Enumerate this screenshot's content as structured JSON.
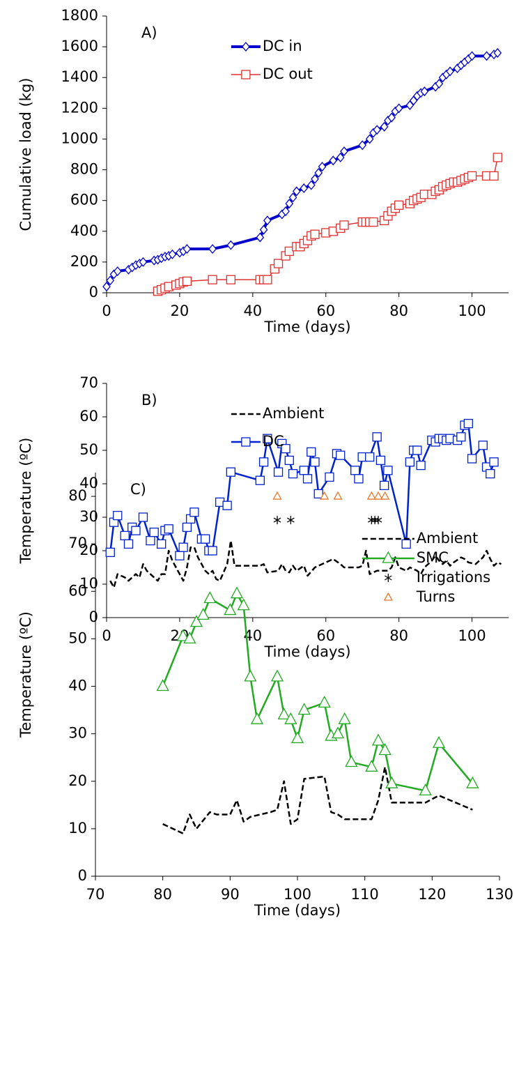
{
  "chart_data": [
    {
      "type": "line",
      "annotation": "A)",
      "x_label": "Time (days)",
      "y_label": "Cumulative load (kg)",
      "xlim": [
        0,
        110
      ],
      "xticks": [
        0,
        20,
        40,
        60,
        80,
        100
      ],
      "ylim": [
        0,
        1800
      ],
      "yticks": [
        0,
        200,
        400,
        600,
        800,
        1000,
        1200,
        1400,
        1600,
        1800
      ],
      "legend": "upper center",
      "series": [
        {
          "name": "DC in",
          "color": "#0000cc",
          "line": "thick",
          "marker": "diamond",
          "x": [
            0,
            1,
            2,
            3,
            6,
            7,
            8,
            9,
            10,
            13,
            14,
            15,
            16,
            17,
            18,
            20,
            21,
            22,
            29,
            34,
            42,
            43,
            44,
            48,
            49,
            50,
            51,
            52,
            54,
            56,
            57,
            58,
            59,
            62,
            64,
            65,
            70,
            72,
            73,
            74,
            76,
            77,
            78,
            79,
            80,
            83,
            84,
            85,
            86,
            87,
            90,
            91,
            92,
            93,
            94,
            96,
            97,
            98,
            99,
            100,
            104,
            106,
            107
          ],
          "values": [
            40,
            80,
            120,
            140,
            150,
            165,
            180,
            190,
            200,
            210,
            215,
            225,
            235,
            240,
            250,
            260,
            270,
            285,
            285,
            310,
            360,
            410,
            470,
            510,
            530,
            580,
            620,
            660,
            680,
            700,
            740,
            780,
            820,
            860,
            880,
            920,
            960,
            1000,
            1040,
            1060,
            1080,
            1120,
            1140,
            1180,
            1200,
            1220,
            1250,
            1280,
            1300,
            1310,
            1340,
            1360,
            1400,
            1420,
            1440,
            1460,
            1480,
            1500,
            1520,
            1540,
            1540,
            1550,
            1560
          ]
        },
        {
          "name": "DC out",
          "color": "#e03030",
          "line": "thin",
          "marker": "square",
          "x": [
            14,
            15,
            16,
            17,
            19,
            20,
            21,
            22,
            29,
            34,
            42,
            43,
            44,
            46,
            47,
            49,
            50,
            52,
            53,
            54,
            55,
            56,
            57,
            60,
            62,
            64,
            65,
            70,
            71,
            72,
            73,
            76,
            77,
            78,
            79,
            80,
            83,
            84,
            85,
            86,
            87,
            89,
            90,
            91,
            92,
            93,
            94,
            95,
            96,
            97,
            98,
            99,
            100,
            104,
            106,
            107
          ],
          "values": [
            10,
            20,
            30,
            40,
            50,
            60,
            70,
            75,
            85,
            85,
            85,
            85,
            85,
            155,
            190,
            240,
            270,
            300,
            300,
            320,
            340,
            370,
            380,
            390,
            400,
            420,
            440,
            460,
            460,
            460,
            460,
            470,
            500,
            530,
            550,
            570,
            580,
            600,
            610,
            620,
            640,
            640,
            660,
            670,
            690,
            700,
            710,
            720,
            720,
            730,
            740,
            750,
            760,
            760,
            760,
            880
          ]
        }
      ]
    },
    {
      "type": "line",
      "annotation": "B)",
      "x_label": "Time (days)",
      "y_label": "Temperature (ºC)",
      "xlim": [
        0,
        110
      ],
      "xticks": [
        0,
        20,
        40,
        60,
        80,
        100
      ],
      "ylim": [
        0,
        70
      ],
      "yticks": [
        0,
        10,
        20,
        30,
        40,
        50,
        60,
        70
      ],
      "legend": "upper center",
      "series": [
        {
          "name": "Ambient",
          "color": "#000000",
          "line": "dashed",
          "marker": "none",
          "x": [
            1,
            2,
            3,
            5,
            6,
            8,
            9,
            10,
            11,
            13,
            14,
            15,
            16,
            17,
            18,
            19,
            20,
            21,
            22,
            23,
            24,
            25,
            26,
            27,
            28,
            29,
            30,
            31,
            33,
            34,
            35,
            42,
            43,
            44,
            47,
            48,
            49,
            50,
            51,
            52,
            54,
            55,
            57,
            60,
            62,
            64,
            65,
            67,
            69,
            70,
            71,
            72,
            74,
            76,
            77,
            78,
            79,
            80,
            82,
            83,
            85,
            86,
            87,
            88,
            89,
            90,
            91,
            92,
            93,
            94,
            95,
            97,
            98,
            99,
            101,
            103,
            104,
            105,
            106,
            107,
            108
          ],
          "values": [
            11,
            9,
            13,
            12,
            11,
            13,
            12,
            16,
            14,
            12,
            11,
            13,
            13,
            20,
            17,
            15,
            13,
            11,
            15,
            21,
            21,
            18,
            16,
            14,
            13,
            14,
            11.5,
            11,
            16,
            23,
            15.5,
            15.5,
            16,
            13.5,
            14,
            16,
            14,
            13.5,
            15.5,
            14,
            15.5,
            12.5,
            15,
            16.5,
            17.5,
            16,
            15,
            15,
            15,
            15.5,
            20,
            13,
            14,
            14,
            14,
            15,
            18,
            15,
            14,
            15,
            14,
            13,
            15,
            16,
            17,
            18.5,
            17,
            16,
            17,
            15.5,
            16.5,
            18,
            17.5,
            16.5,
            16,
            18,
            20,
            17.5,
            15.5,
            16.5,
            16
          ]
        },
        {
          "name": "DC",
          "color": "#0022cc",
          "line": "normal",
          "marker": "square",
          "x": [
            1,
            2,
            3,
            5,
            6,
            7,
            8,
            10,
            12,
            13,
            15,
            16,
            17,
            20,
            21,
            22,
            23,
            24,
            26,
            27,
            28,
            29,
            31,
            33,
            34,
            42,
            43,
            44,
            47,
            48,
            49,
            50,
            51,
            54,
            55,
            56,
            57,
            58,
            61,
            63,
            64,
            68,
            69,
            70,
            72,
            74,
            75,
            76,
            77,
            82,
            83,
            84,
            85,
            86,
            89,
            90,
            91,
            92,
            93,
            94,
            96,
            97,
            98,
            99,
            100,
            103,
            104,
            105,
            106
          ],
          "values": [
            19.5,
            28.5,
            30.5,
            24.5,
            22,
            27,
            26,
            30,
            23,
            25.5,
            22,
            26,
            26.5,
            18.5,
            21,
            27,
            29.5,
            31.5,
            23.5,
            23.5,
            20,
            20,
            34.5,
            33.5,
            43.5,
            41,
            46.5,
            53.5,
            43.5,
            52,
            50.5,
            47,
            43,
            44,
            41.5,
            49.5,
            46.5,
            37,
            42,
            49,
            48.5,
            44,
            41.5,
            48,
            48,
            54,
            47,
            39.5,
            44,
            22,
            46.5,
            50,
            50,
            45.5,
            53,
            52.5,
            53.5,
            53.5,
            53,
            53.5,
            53,
            54,
            57.5,
            58,
            47.5,
            51.5,
            45,
            43,
            46.5
          ]
        }
      ]
    },
    {
      "type": "line",
      "annotation": "C)",
      "x_label": "Time (days)",
      "y_label": "Temperature (ºC)",
      "xlim": [
        70,
        130
      ],
      "xticks": [
        70,
        80,
        90,
        100,
        110,
        120,
        130
      ],
      "ylim": [
        0,
        85
      ],
      "yticks": [
        0,
        10,
        20,
        30,
        40,
        50,
        60,
        70,
        80
      ],
      "legend": "center right",
      "series": [
        {
          "name": "Ambient",
          "color": "#000000",
          "line": "dashed",
          "marker": "none",
          "x": [
            80,
            83,
            84,
            85,
            87,
            88,
            90,
            91,
            92,
            93,
            96,
            97,
            98,
            99,
            100,
            101,
            104,
            105,
            106,
            107,
            110,
            111,
            112,
            113,
            114,
            119,
            121,
            126
          ],
          "values": [
            11,
            9,
            13,
            10,
            13.5,
            13,
            13,
            16,
            11.5,
            12.5,
            13.5,
            14,
            20,
            11,
            12,
            20.5,
            21,
            13.5,
            13,
            12,
            12,
            12,
            16,
            23,
            15.5,
            15.5,
            17,
            14
          ]
        },
        {
          "name": "SMC",
          "color": "#22aa22",
          "line": "normal",
          "marker": "triangle",
          "x": [
            80,
            83,
            84,
            85,
            86,
            87,
            90,
            91,
            92,
            93,
            94,
            97,
            98,
            99,
            100,
            101,
            104,
            105,
            106,
            107,
            108,
            111,
            112,
            113,
            114,
            119,
            121,
            126
          ],
          "values": [
            40,
            50.5,
            50,
            53.5,
            55,
            58.5,
            56,
            59.5,
            57,
            42,
            33,
            42,
            34,
            33,
            29,
            35,
            36.5,
            29.5,
            30,
            33,
            24,
            23,
            28.5,
            26.5,
            19.5,
            18,
            28,
            19.5
          ]
        },
        {
          "name": "Irrigations",
          "color": "#000000",
          "line": "none",
          "marker": "asterisk",
          "x": [
            97,
            99,
            111,
            111.5,
            112
          ],
          "values": [
            75,
            75,
            75,
            75,
            75
          ]
        },
        {
          "name": "Turns",
          "color": "#e8782a",
          "line": "none",
          "marker": "small-triangle",
          "x": [
            97,
            104,
            106,
            111,
            112,
            113
          ],
          "values": [
            80,
            80,
            80,
            80,
            80,
            80
          ]
        }
      ]
    }
  ]
}
